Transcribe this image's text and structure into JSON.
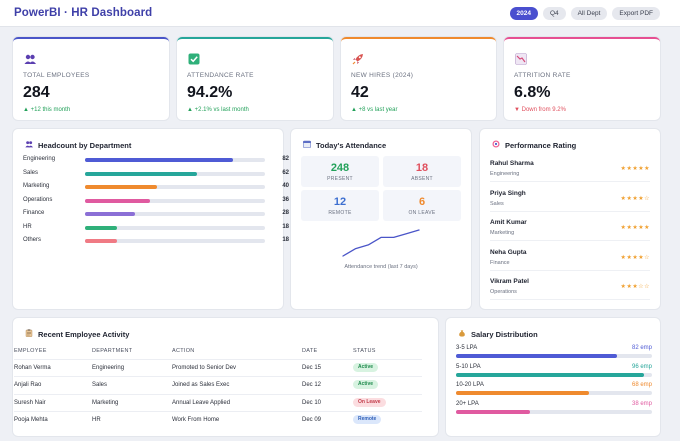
{
  "header": {
    "title": "PowerBI · HR Dashboard",
    "filters": [
      {
        "label": "2024",
        "active": true
      },
      {
        "label": "Q4",
        "active": false
      },
      {
        "label": "All Dept",
        "active": false
      },
      {
        "label": "Export PDF",
        "active": false
      }
    ]
  },
  "kpis": [
    {
      "icon": "people-icon",
      "label": "TOTAL EMPLOYEES",
      "value": "284",
      "delta": "+12 this month",
      "trend": "up",
      "accent": "#4a55c8"
    },
    {
      "icon": "check-box-icon",
      "label": "ATTENDANCE RATE",
      "value": "94.2%",
      "delta": "+2.1% vs last month",
      "trend": "up",
      "accent": "#26a69a"
    },
    {
      "icon": "rocket-icon",
      "label": "NEW HIRES (2024)",
      "value": "42",
      "delta": "+8 vs last year",
      "trend": "up",
      "accent": "#ef8a2e"
    },
    {
      "icon": "chart-down-icon",
      "label": "ATTRITION RATE",
      "value": "6.8%",
      "delta": "Down from 9.2%",
      "trend": "down",
      "accent": "#e64f92"
    }
  ],
  "headcount": {
    "title": "Headcount by Department",
    "max": 100,
    "items": [
      {
        "dept": "Engineering",
        "value": 82,
        "color": "#4f5bd5"
      },
      {
        "dept": "Sales",
        "value": 62,
        "color": "#26a69a"
      },
      {
        "dept": "Marketing",
        "value": 40,
        "color": "#ef8a2e"
      },
      {
        "dept": "Operations",
        "value": 36,
        "color": "#e05aa0"
      },
      {
        "dept": "Finance",
        "value": 28,
        "color": "#8b6fd6"
      },
      {
        "dept": "HR",
        "value": 18,
        "color": "#2fb07a"
      },
      {
        "dept": "Others",
        "value": 18,
        "color": "#f07a84"
      }
    ]
  },
  "attendance": {
    "title": "Today's Attendance",
    "stats": [
      {
        "value": "248",
        "label": "PRESENT",
        "color": "#23a15a"
      },
      {
        "value": "18",
        "label": "ABSENT",
        "color": "#e0505e"
      },
      {
        "value": "12",
        "label": "REMOTE",
        "color": "#3d6fd0"
      },
      {
        "value": "6",
        "label": "ON LEAVE",
        "color": "#ef8a2e"
      }
    ],
    "trend_caption": "Attendance trend (last 7 days)",
    "trend_values": [
      88,
      90,
      91,
      93,
      93,
      94,
      95
    ],
    "trend_color": "#4a55c8"
  },
  "performance": {
    "title": "Performance Rating",
    "people": [
      {
        "name": "Rahul Sharma",
        "dept": "Engineering",
        "stars": 5
      },
      {
        "name": "Priya Singh",
        "dept": "Sales",
        "stars": 4
      },
      {
        "name": "Amit Kumar",
        "dept": "Marketing",
        "stars": 5
      },
      {
        "name": "Neha Gupta",
        "dept": "Finance",
        "stars": 4
      },
      {
        "name": "Vikram Patel",
        "dept": "Operations",
        "stars": 3
      }
    ]
  },
  "activity": {
    "title": "Recent Employee Activity",
    "columns": [
      "EMPLOYEE",
      "DEPARTMENT",
      "ACTION",
      "DATE",
      "STATUS"
    ],
    "rows": [
      {
        "employee": "Rohan Verma",
        "department": "Engineering",
        "action": "Promoted to Senior Dev",
        "date": "Dec 15",
        "status": "Active",
        "status_bg": "#d8f3e1",
        "status_fg": "#1f8a4c"
      },
      {
        "employee": "Anjali Rao",
        "department": "Sales",
        "action": "Joined as Sales Exec",
        "date": "Dec 12",
        "status": "Active",
        "status_bg": "#d8f3e1",
        "status_fg": "#1f8a4c"
      },
      {
        "employee": "Suresh Nair",
        "department": "Marketing",
        "action": "Annual Leave Applied",
        "date": "Dec 10",
        "status": "On Leave",
        "status_bg": "#fbdde0",
        "status_fg": "#c23b4a"
      },
      {
        "employee": "Pooja Mehta",
        "department": "HR",
        "action": "Work From Home",
        "date": "Dec 09",
        "status": "Remote",
        "status_bg": "#dbe7fb",
        "status_fg": "#2f5fb8"
      }
    ]
  },
  "salary": {
    "title": "Salary Distribution",
    "max": 100,
    "bands": [
      {
        "label": "3-5 LPA",
        "value": 82,
        "count": "82 emp",
        "color": "#4f5bd5"
      },
      {
        "label": "5-10 LPA",
        "value": 96,
        "count": "96 emp",
        "color": "#26a69a"
      },
      {
        "label": "10-20 LPA",
        "value": 68,
        "count": "68 emp",
        "color": "#ef8a2e"
      },
      {
        "label": "20+ LPA",
        "value": 38,
        "count": "38 emp",
        "color": "#e05aa0"
      }
    ]
  }
}
